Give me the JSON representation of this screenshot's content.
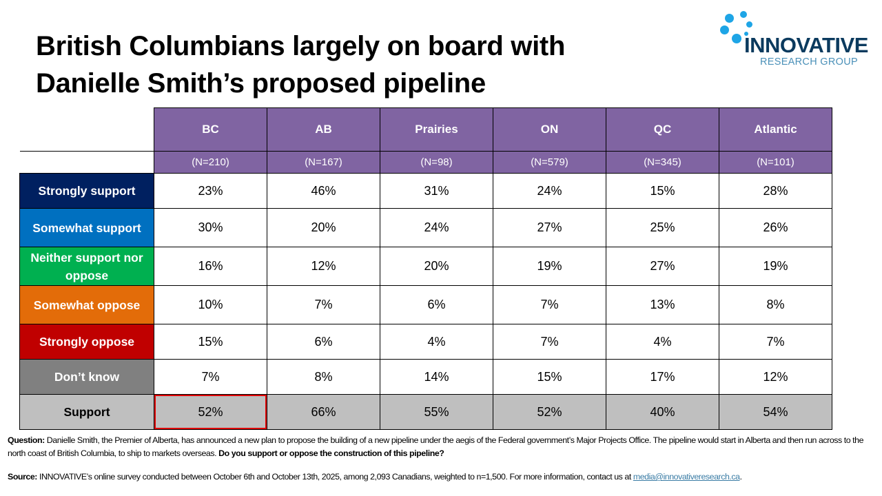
{
  "title": [
    "British Columbians largely on board with",
    "Danielle Smith’s proposed pipeline"
  ],
  "logo": {
    "name": "INNOVATIVE",
    "sub": "RESEARCH GROUP"
  },
  "colors": {
    "header": "#8064a2",
    "strongly_support": "#002060",
    "somewhat_support": "#0070c0",
    "neither": "#00b050",
    "somewhat_oppose": "#e36c09",
    "strongly_oppose": "#c00000",
    "dont_know": "#808080",
    "support": "#bfbfbf",
    "highlight": "#e00000"
  },
  "table": {
    "columns": [
      {
        "label": "BC",
        "n": "(N=210)"
      },
      {
        "label": "AB",
        "n": "(N=167)"
      },
      {
        "label": "Prairies",
        "n": "(N=98)"
      },
      {
        "label": "ON",
        "n": "(N=579)"
      },
      {
        "label": "QC",
        "n": "(N=345)"
      },
      {
        "label": "Atlantic",
        "n": "(N=101)"
      }
    ],
    "rows": [
      {
        "label": "Strongly support",
        "values": [
          "23%",
          "46%",
          "31%",
          "24%",
          "15%",
          "28%"
        ]
      },
      {
        "label": "Somewhat support",
        "values": [
          "30%",
          "20%",
          "24%",
          "27%",
          "25%",
          "26%"
        ]
      },
      {
        "label": "Neither support nor oppose",
        "values": [
          "16%",
          "12%",
          "20%",
          "19%",
          "27%",
          "19%"
        ]
      },
      {
        "label": "Somewhat oppose",
        "values": [
          "10%",
          "7%",
          "6%",
          "7%",
          "13%",
          "8%"
        ]
      },
      {
        "label": "Strongly oppose",
        "values": [
          "15%",
          "6%",
          "4%",
          "7%",
          "4%",
          "7%"
        ]
      },
      {
        "label": "Don’t know",
        "values": [
          "7%",
          "8%",
          "14%",
          "15%",
          "17%",
          "12%"
        ]
      },
      {
        "label": "Support",
        "values": [
          "52%",
          "66%",
          "55%",
          "52%",
          "40%",
          "54%"
        ]
      }
    ]
  },
  "footer": {
    "question_label": "Question:",
    "question_text": " Danielle Smith, the Premier of Alberta, has announced a new plan to propose the building of a new pipeline under the aegis of the Federal government’s Major Projects Office.  The pipeline would start in Alberta and then run across to the north coast of British Columbia, to ship to markets overseas. ",
    "question_bold": "Do you support or oppose the construction of this pipeline?",
    "source_label": "Source:",
    "source_text": " INNOVATIVE’s online survey conducted between October 6th and October 13th, 2025, among 2,093 Canadians, weighted to n=1,500. For more information, contact us at ",
    "email": "media@innovativeresearch.ca",
    "end": "."
  }
}
